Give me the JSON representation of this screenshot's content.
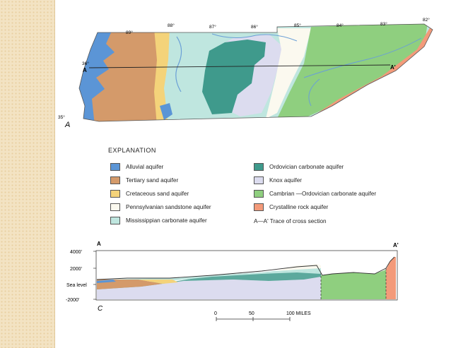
{
  "map": {
    "corner_label": "A",
    "longitudes": [
      "89°",
      "88°",
      "87°",
      "86°",
      "85°",
      "84°",
      "83°",
      "82°"
    ],
    "latitudes": [
      "36°",
      "35°"
    ],
    "section_start": "A",
    "section_end": "A'"
  },
  "legend": {
    "title": "EXPLANATION",
    "items": [
      {
        "label": "Alluvial aquifer",
        "color": "#5b95d6"
      },
      {
        "label": "Tertiary sand aquifer",
        "color": "#d49a6a"
      },
      {
        "label": "Cretaceous sand aquifer",
        "color": "#f4d37a"
      },
      {
        "label": "Pennsylvanian sandstone aquifer",
        "color": "#fbf9ef"
      },
      {
        "label": "Mississippian carbonate aquifer",
        "color": "#bfe6df"
      },
      {
        "label": "Ordovician carbonate aquifer",
        "color": "#3f9a8c"
      },
      {
        "label": "Knox aquifer",
        "color": "#dcdcef"
      },
      {
        "label": "Cambrian —Ordovician  carbonate aquifer",
        "color": "#8fcf7f"
      },
      {
        "label": "Crystalline rock aquifer",
        "color": "#f39a7a"
      }
    ],
    "trace": "A—A' Trace of cross section"
  },
  "cross_section": {
    "label_left": "A",
    "label_right": "A'",
    "corner_label": "C",
    "elevations": [
      "4000'",
      "2000'",
      "Sea level",
      "-2000'"
    ]
  },
  "scale": {
    "ticks": [
      "0",
      "50",
      "100 MILES"
    ]
  }
}
